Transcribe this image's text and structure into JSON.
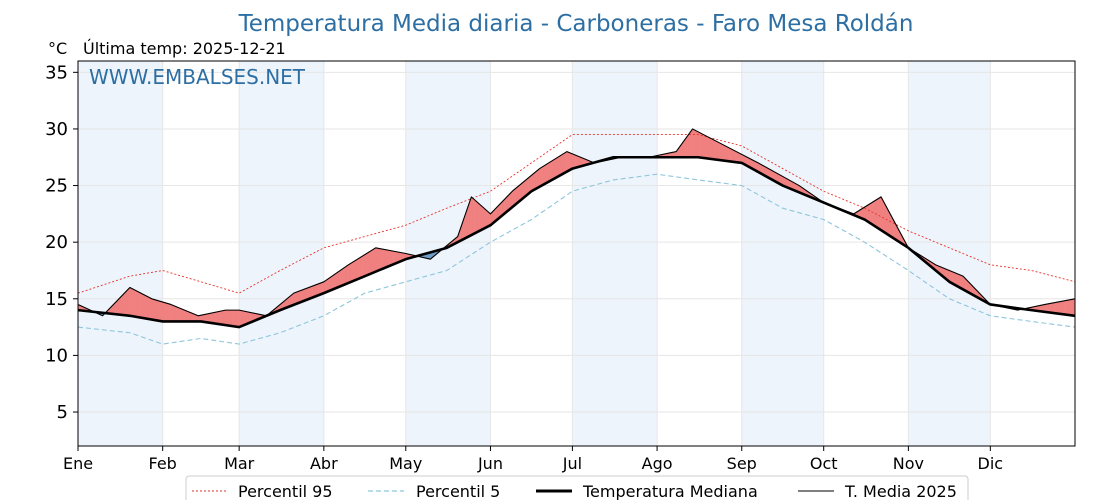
{
  "chart_data": {
    "type": "line",
    "title": "Temperatura Media diaria - Carboneras - Faro Mesa Roldán",
    "unit": "°C",
    "last_temp_label": "Última temp: 2025-12-21",
    "watermark": "WWW.EMBALSES.NET",
    "xlabel": "",
    "ylabel": "°C",
    "ylim": [
      2,
      36
    ],
    "xlim": [
      1,
      366
    ],
    "yticks": [
      5,
      10,
      15,
      20,
      25,
      30,
      35
    ],
    "months": [
      "Ene",
      "Feb",
      "Mar",
      "Abr",
      "May",
      "Jun",
      "Jul",
      "Ago",
      "Sep",
      "Oct",
      "Nov",
      "Dic"
    ],
    "month_starts": [
      1,
      32,
      60,
      91,
      121,
      152,
      182,
      213,
      244,
      274,
      305,
      335
    ],
    "legend_placement": "bottom",
    "colors": {
      "title": "#2e6fa3",
      "p95": "#e8322a",
      "p5": "#8ec6dc",
      "median": "#000000",
      "current": "#000000",
      "above": "#f08080",
      "below": "#6e9cc6",
      "band": "#eef4fb"
    },
    "series": [
      {
        "name": "Percentil 95",
        "style": "dotted",
        "x": [
          1,
          20,
          32,
          46,
          60,
          75,
          91,
          106,
          121,
          136,
          152,
          167,
          182,
          197,
          213,
          228,
          244,
          259,
          274,
          289,
          305,
          320,
          335,
          350,
          366
        ],
        "values": [
          15.5,
          17,
          17.5,
          16.5,
          15.5,
          17.5,
          19.5,
          20.5,
          21.5,
          23,
          24.5,
          27,
          29.5,
          29.5,
          29.5,
          29.5,
          28.5,
          26.5,
          24.5,
          23,
          21,
          19.5,
          18,
          17.5,
          16.5
        ]
      },
      {
        "name": "Percentil 5",
        "style": "dashed",
        "x": [
          1,
          20,
          32,
          46,
          60,
          75,
          91,
          106,
          121,
          136,
          152,
          167,
          182,
          197,
          213,
          228,
          244,
          259,
          274,
          289,
          305,
          320,
          335,
          350,
          366
        ],
        "values": [
          12.5,
          12,
          11,
          11.5,
          11,
          12,
          13.5,
          15.5,
          16.5,
          17.5,
          20,
          22,
          24.5,
          25.5,
          26,
          25.5,
          25,
          23,
          22,
          20,
          17.5,
          15,
          13.5,
          13,
          12.5
        ]
      },
      {
        "name": "Temperatura Mediana",
        "style": "thick",
        "x": [
          1,
          20,
          32,
          46,
          60,
          75,
          91,
          106,
          121,
          136,
          152,
          167,
          182,
          197,
          213,
          228,
          244,
          259,
          274,
          289,
          305,
          320,
          335,
          350,
          366
        ],
        "values": [
          14,
          13.5,
          13,
          13,
          12.5,
          14,
          15.5,
          17,
          18.5,
          19.5,
          21.5,
          24.5,
          26.5,
          27.5,
          27.5,
          27.5,
          27,
          25,
          23.5,
          22,
          19.5,
          16.5,
          14.5,
          14,
          13.5
        ]
      },
      {
        "name": "T. Media 2025",
        "style": "thin",
        "x": [
          1,
          10,
          20,
          28,
          35,
          45,
          55,
          60,
          70,
          80,
          91,
          100,
          110,
          121,
          130,
          140,
          145,
          152,
          160,
          170,
          180,
          190,
          200,
          210,
          220,
          226,
          238,
          250,
          265,
          274,
          285,
          295,
          305,
          315,
          325,
          335,
          345,
          355,
          366
        ],
        "values": [
          14.5,
          13.5,
          16,
          15,
          14.5,
          13.5,
          14,
          14,
          13.5,
          15.5,
          16.5,
          18,
          19.5,
          19,
          18.5,
          20.5,
          24,
          22.5,
          24.5,
          26.5,
          28,
          27,
          27.5,
          27.5,
          28,
          30,
          28.5,
          27,
          25,
          23.5,
          22.5,
          24,
          19.5,
          18,
          17,
          14.5,
          14,
          14.5,
          15
        ]
      }
    ]
  }
}
